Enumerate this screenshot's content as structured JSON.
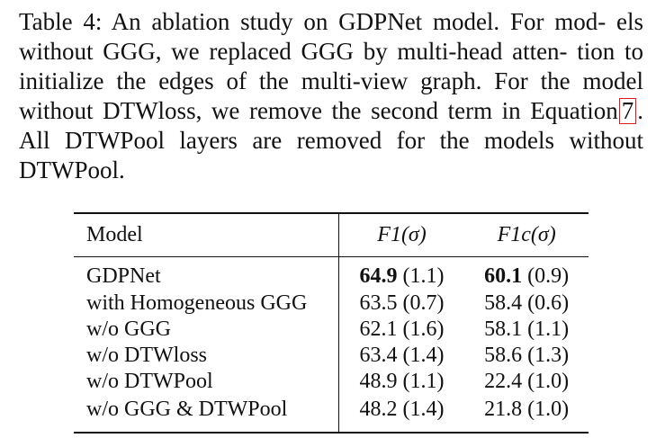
{
  "caption": {
    "line1": "Table 4: An ablation study on GDPNet model. For mod-",
    "line2": "els without GGG, we replaced GGG by multi-head atten-",
    "line3": "tion to initialize the edges of the multi-view graph. For the",
    "line4": "model without DTWloss, we remove the second term in",
    "line5_before": "Equation",
    "line5_ref": "7",
    "line5_after": ". All DTWPool layers are removed for the models",
    "line6": "without DTWPool."
  },
  "table": {
    "headers": {
      "model": "Model",
      "f1": "F1(σ)",
      "f1c": "F1c(σ)"
    },
    "rows": [
      {
        "model": "GDPNet",
        "f1_value": "64.9",
        "f1_std": "(1.1)",
        "f1c_value": "60.1",
        "f1c_std": "(0.9)"
      },
      {
        "model": "with Homogeneous GGG",
        "f1_value": "63.5",
        "f1_std": "(0.7)",
        "f1c_value": "58.4",
        "f1c_std": "(0.6)"
      },
      {
        "model": "w/o GGG",
        "f1_value": "62.1",
        "f1_std": "(1.6)",
        "f1c_value": "58.1",
        "f1c_std": "(1.1)"
      },
      {
        "model": "w/o DTWloss",
        "f1_value": "63.4",
        "f1_std": "(1.4)",
        "f1c_value": "58.6",
        "f1c_std": "(1.3)"
      },
      {
        "model": "w/o DTWPool",
        "f1_value": "48.9",
        "f1_std": "(1.1)",
        "f1c_value": "22.4",
        "f1c_std": "(1.0)"
      },
      {
        "model": "w/o GGG & DTWPool",
        "f1_value": "48.2",
        "f1_std": "(1.4)",
        "f1c_value": "21.8",
        "f1c_std": "(1.0)"
      }
    ]
  },
  "colors": {
    "text": "#111111",
    "link_box": "#e01b1b",
    "background": "#ffffff"
  }
}
